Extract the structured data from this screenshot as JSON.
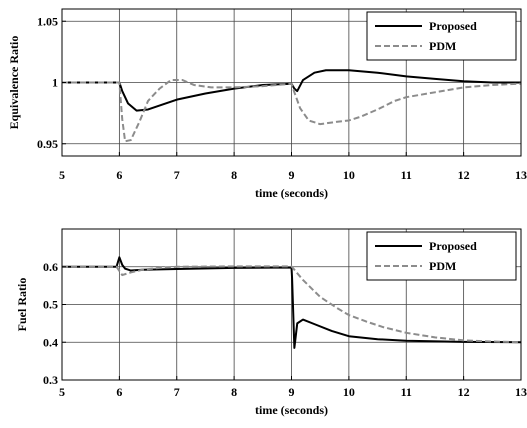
{
  "chart_data": [
    {
      "type": "line",
      "title": "",
      "xlabel": "time (seconds)",
      "ylabel": "Equivalence Ratio",
      "xlim": [
        5,
        13
      ],
      "ylim": [
        0.94,
        1.06
      ],
      "xticks": [
        5,
        6,
        7,
        8,
        9,
        10,
        11,
        12,
        13
      ],
      "xtick_labels": [
        "5",
        "6",
        "7",
        "8",
        "9",
        "10",
        "11",
        "12",
        "13"
      ],
      "yticks": [
        0.95,
        1.0,
        1.05
      ],
      "ytick_labels": [
        "0.95",
        "1",
        "1.05"
      ],
      "grid": true,
      "legend": "top-right",
      "series": [
        {
          "name": "Proposed",
          "color": "#000000",
          "style": "solid",
          "x": [
            5,
            6,
            6.05,
            6.15,
            6.3,
            6.5,
            7,
            7.5,
            8,
            8.5,
            9,
            9.05,
            9.1,
            9.2,
            9.4,
            9.6,
            10,
            10.5,
            11,
            11.5,
            12,
            12.5,
            13
          ],
          "y": [
            1.0,
            1.0,
            0.993,
            0.983,
            0.977,
            0.978,
            0.986,
            0.991,
            0.995,
            0.998,
            0.999,
            0.995,
            0.993,
            1.002,
            1.008,
            1.01,
            1.01,
            1.008,
            1.005,
            1.003,
            1.001,
            1.0,
            1.0
          ]
        },
        {
          "name": "PDM",
          "color": "#8c8c8c",
          "style": "dashed",
          "x": [
            5,
            6,
            6.05,
            6.1,
            6.2,
            6.35,
            6.5,
            6.7,
            6.9,
            7.1,
            7.3,
            7.6,
            8,
            8.5,
            9,
            9.05,
            9.15,
            9.3,
            9.5,
            9.8,
            10,
            10.2,
            10.5,
            10.8,
            11,
            11.5,
            12,
            12.5,
            13
          ],
          "y": [
            1.0,
            1.0,
            0.97,
            0.952,
            0.953,
            0.968,
            0.985,
            0.995,
            1.002,
            1.002,
            0.998,
            0.996,
            0.996,
            0.997,
            0.999,
            0.992,
            0.979,
            0.969,
            0.966,
            0.968,
            0.969,
            0.972,
            0.978,
            0.985,
            0.988,
            0.992,
            0.996,
            0.998,
            0.999
          ]
        }
      ]
    },
    {
      "type": "line",
      "title": "",
      "xlabel": "time (seconds)",
      "ylabel": "Fuel Ratio",
      "xlim": [
        5,
        13
      ],
      "ylim": [
        0.3,
        0.7
      ],
      "xticks": [
        5,
        6,
        7,
        8,
        9,
        10,
        11,
        12,
        13
      ],
      "xtick_labels": [
        "5",
        "6",
        "7",
        "8",
        "9",
        "10",
        "11",
        "12",
        "13"
      ],
      "yticks": [
        0.3,
        0.4,
        0.5,
        0.6
      ],
      "ytick_labels": [
        "0.3",
        "0.4",
        "0.5",
        "0.6"
      ],
      "grid": true,
      "legend": "top-right",
      "series": [
        {
          "name": "Proposed",
          "color": "#000000",
          "style": "solid",
          "x": [
            5,
            5.95,
            6.0,
            6.05,
            6.1,
            6.2,
            6.4,
            7,
            8,
            9,
            9.01,
            9.05,
            9.1,
            9.2,
            9.4,
            9.7,
            10,
            10.5,
            11,
            12,
            13
          ],
          "y": [
            0.6,
            0.6,
            0.625,
            0.605,
            0.595,
            0.59,
            0.592,
            0.594,
            0.597,
            0.598,
            0.57,
            0.385,
            0.45,
            0.46,
            0.448,
            0.43,
            0.416,
            0.408,
            0.404,
            0.401,
            0.4
          ],
          "labels": []
        },
        {
          "name": "PDM",
          "color": "#8c8c8c",
          "style": "dashed",
          "x": [
            5,
            5.95,
            6.05,
            6.2,
            6.4,
            6.7,
            7,
            8,
            9,
            9.2,
            9.5,
            9.8,
            10,
            10.3,
            10.6,
            11,
            11.5,
            12,
            12.5,
            13
          ],
          "y": [
            0.6,
            0.6,
            0.578,
            0.585,
            0.592,
            0.597,
            0.6,
            0.601,
            0.601,
            0.565,
            0.52,
            0.49,
            0.472,
            0.455,
            0.44,
            0.425,
            0.413,
            0.405,
            0.402,
            0.4
          ]
        }
      ]
    }
  ]
}
